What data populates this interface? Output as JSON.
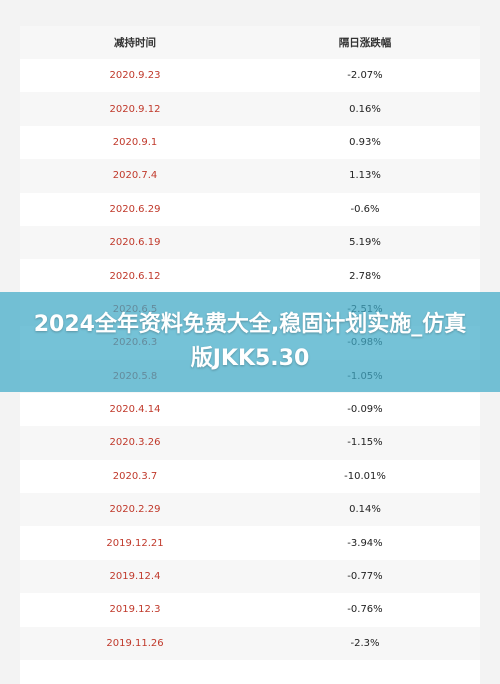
{
  "table": {
    "headers": {
      "date": "减持时间",
      "change": "隔日涨跌幅"
    },
    "rows": [
      {
        "date": "2020.9.23",
        "change": "-2.07%"
      },
      {
        "date": "2020.9.12",
        "change": "0.16%"
      },
      {
        "date": "2020.9.1",
        "change": "0.93%"
      },
      {
        "date": "2020.7.4",
        "change": "1.13%"
      },
      {
        "date": "2020.6.29",
        "change": "-0.6%"
      },
      {
        "date": "2020.6.19",
        "change": "5.19%"
      },
      {
        "date": "2020.6.12",
        "change": "2.78%"
      },
      {
        "date": "2020.6.5",
        "change": "-2.51%"
      },
      {
        "date": "2020.6.3",
        "change": "-0.98%"
      },
      {
        "date": "2020.5.8",
        "change": "-1.05%"
      },
      {
        "date": "2020.4.14",
        "change": "-0.09%"
      },
      {
        "date": "2020.3.26",
        "change": "-1.15%"
      },
      {
        "date": "2020.3.7",
        "change": "-10.01%"
      },
      {
        "date": "2020.2.29",
        "change": "0.14%"
      },
      {
        "date": "2019.12.21",
        "change": "-3.94%"
      },
      {
        "date": "2019.12.4",
        "change": "-0.77%"
      },
      {
        "date": "2019.12.3",
        "change": "-0.76%"
      },
      {
        "date": "2019.11.26",
        "change": "-2.3%"
      }
    ]
  },
  "banner": {
    "title": "2024全年资料免费大全,稳固计划实施_仿真版JKK5.30"
  },
  "colors": {
    "date_text": "#c0392b",
    "banner_bg": "#40aac8"
  }
}
